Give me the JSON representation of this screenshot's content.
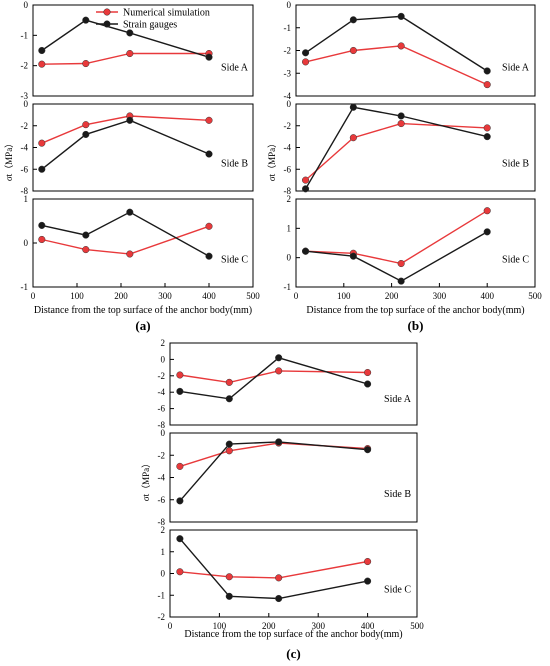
{
  "legend": {
    "entries": [
      {
        "label": "Numerical simulation",
        "color": "#e8393b"
      },
      {
        "label": "Strain gauges",
        "color": "#1a1a1a"
      }
    ]
  },
  "colors": {
    "simulation": "#e8393b",
    "gauges": "#1a1a1a",
    "axis": "#000000"
  },
  "chart_data": [
    {
      "panel_label": "(a)",
      "type": "line",
      "xlabel": "Distance from the top surface of the anchor body(mm)",
      "ylabel": "σt（MPa）",
      "x_ticks": [
        0,
        100,
        200,
        300,
        400,
        500
      ],
      "xlim": [
        0,
        500
      ],
      "subplots": [
        {
          "side_label": "Side A",
          "ylim": [
            -3,
            0
          ],
          "y_ticks": [
            -3,
            -2,
            -1,
            0
          ],
          "series": [
            {
              "name": "Numerical simulation",
              "x": [
                20,
                120,
                220,
                400
              ],
              "y": [
                -1.95,
                -1.93,
                -1.6,
                -1.6
              ]
            },
            {
              "name": "Strain gauges",
              "x": [
                20,
                120,
                220,
                400
              ],
              "y": [
                -1.5,
                -0.5,
                -0.92,
                -1.72
              ]
            }
          ]
        },
        {
          "side_label": "Side B",
          "ylim": [
            -8,
            0
          ],
          "y_ticks": [
            -8,
            -6,
            -4,
            -2,
            0
          ],
          "series": [
            {
              "name": "Numerical simulation",
              "x": [
                20,
                120,
                220,
                400
              ],
              "y": [
                -3.6,
                -1.9,
                -1.1,
                -1.5
              ]
            },
            {
              "name": "Strain gauges",
              "x": [
                20,
                120,
                220,
                400
              ],
              "y": [
                -6.0,
                -2.8,
                -1.5,
                -4.6
              ]
            }
          ]
        },
        {
          "side_label": "Side C",
          "ylim": [
            -1,
            1
          ],
          "y_ticks": [
            -1,
            0,
            1
          ],
          "series": [
            {
              "name": "Numerical simulation",
              "x": [
                20,
                120,
                220,
                400
              ],
              "y": [
                0.08,
                -0.15,
                -0.25,
                0.38
              ]
            },
            {
              "name": "Strain gauges",
              "x": [
                20,
                120,
                220,
                400
              ],
              "y": [
                0.4,
                0.18,
                0.7,
                -0.3
              ]
            }
          ]
        }
      ]
    },
    {
      "panel_label": "(b)",
      "type": "line",
      "xlabel": "Distance from the top surface of the anchor body(mm)",
      "ylabel": "σt（MPa）",
      "x_ticks": [
        0,
        100,
        200,
        300,
        400,
        500
      ],
      "xlim": [
        0,
        500
      ],
      "subplots": [
        {
          "side_label": "Side A",
          "ylim": [
            -4,
            0
          ],
          "y_ticks": [
            -4,
            -3,
            -2,
            -1,
            0
          ],
          "series": [
            {
              "name": "Numerical simulation",
              "x": [
                20,
                120,
                220,
                400
              ],
              "y": [
                -2.5,
                -2.0,
                -1.8,
                -3.5
              ]
            },
            {
              "name": "Strain gauges",
              "x": [
                20,
                120,
                220,
                400
              ],
              "y": [
                -2.1,
                -0.65,
                -0.5,
                -2.9
              ]
            }
          ]
        },
        {
          "side_label": "Side B",
          "ylim": [
            -8,
            0
          ],
          "y_ticks": [
            -8,
            -6,
            -4,
            -2,
            0
          ],
          "series": [
            {
              "name": "Numerical simulation",
              "x": [
                20,
                120,
                220,
                400
              ],
              "y": [
                -7.0,
                -3.1,
                -1.8,
                -2.2
              ]
            },
            {
              "name": "Strain gauges",
              "x": [
                20,
                120,
                220,
                400
              ],
              "y": [
                -7.8,
                -0.3,
                -1.1,
                -3.0
              ]
            }
          ]
        },
        {
          "side_label": "Side C",
          "ylim": [
            -1,
            2
          ],
          "y_ticks": [
            -1,
            0,
            1,
            2
          ],
          "series": [
            {
              "name": "Numerical simulation",
              "x": [
                20,
                120,
                220,
                400
              ],
              "y": [
                0.22,
                0.15,
                -0.2,
                1.6
              ]
            },
            {
              "name": "Strain gauges",
              "x": [
                20,
                120,
                220,
                400
              ],
              "y": [
                0.22,
                0.05,
                -0.8,
                0.88
              ]
            }
          ]
        }
      ]
    },
    {
      "panel_label": "(c)",
      "type": "line",
      "xlabel": "Distance from the top surface of the anchor body(mm)",
      "ylabel": "σt（MPa）",
      "x_ticks": [
        0,
        100,
        200,
        300,
        400,
        500
      ],
      "xlim": [
        0,
        500
      ],
      "subplots": [
        {
          "side_label": "Side A",
          "ylim": [
            -8,
            2
          ],
          "y_ticks": [
            -8,
            -6,
            -4,
            -2,
            0,
            2
          ],
          "series": [
            {
              "name": "Numerical simulation",
              "x": [
                20,
                120,
                220,
                400
              ],
              "y": [
                -1.9,
                -2.8,
                -1.4,
                -1.6
              ]
            },
            {
              "name": "Strain gauges",
              "x": [
                20,
                120,
                220,
                400
              ],
              "y": [
                -3.9,
                -4.8,
                0.2,
                -3.0
              ]
            }
          ]
        },
        {
          "side_label": "Side B",
          "ylim": [
            -8,
            0
          ],
          "y_ticks": [
            -8,
            -6,
            -4,
            -2,
            0
          ],
          "series": [
            {
              "name": "Numerical simulation",
              "x": [
                20,
                120,
                220,
                400
              ],
              "y": [
                -3.0,
                -1.6,
                -0.9,
                -1.4
              ]
            },
            {
              "name": "Strain gauges",
              "x": [
                20,
                120,
                220,
                400
              ],
              "y": [
                -6.1,
                -1.0,
                -0.8,
                -1.5
              ]
            }
          ]
        },
        {
          "side_label": "Side C",
          "ylim": [
            -2,
            2
          ],
          "y_ticks": [
            -2,
            -1,
            0,
            1,
            2
          ],
          "series": [
            {
              "name": "Numerical simulation",
              "x": [
                20,
                120,
                220,
                400
              ],
              "y": [
                0.08,
                -0.15,
                -0.2,
                0.55
              ]
            },
            {
              "name": "Strain gauges",
              "x": [
                20,
                120,
                220,
                400
              ],
              "y": [
                1.6,
                -1.05,
                -1.15,
                -0.35
              ]
            }
          ]
        }
      ]
    }
  ]
}
